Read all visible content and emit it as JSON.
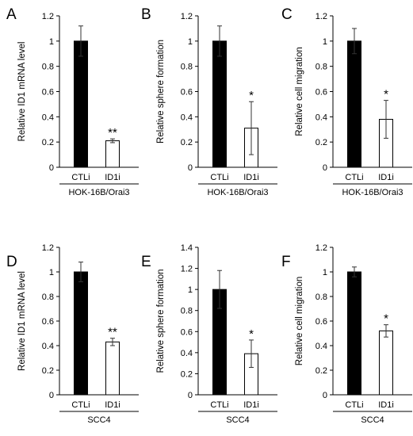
{
  "chart_data": [
    {
      "panel": "A",
      "type": "bar",
      "ylabel": "Relative ID1 mRNA level",
      "categories": [
        "CTLi",
        "ID1i"
      ],
      "values": [
        1.0,
        0.21
      ],
      "errors": [
        0.12,
        0.015
      ],
      "fills": [
        "#000000",
        "#ffffff"
      ],
      "significance": [
        "",
        "**"
      ],
      "group": "HOK-16B/Orai3",
      "ylim": [
        0,
        1.2
      ],
      "yticks": [
        "0",
        "0.2",
        "0.4",
        "0.6",
        "0.8",
        "1",
        "1.2"
      ]
    },
    {
      "panel": "B",
      "type": "bar",
      "ylabel": "Relative sphere formation",
      "categories": [
        "CTLi",
        "ID1i"
      ],
      "values": [
        1.0,
        0.31
      ],
      "errors": [
        0.12,
        0.21
      ],
      "fills": [
        "#000000",
        "#ffffff"
      ],
      "significance": [
        "",
        "*"
      ],
      "group": "HOK-16B/Orai3",
      "ylim": [
        0,
        1.2
      ],
      "yticks": [
        "0",
        "0.2",
        "0.4",
        "0.6",
        "0.8",
        "1",
        "1.2"
      ]
    },
    {
      "panel": "C",
      "type": "bar",
      "ylabel": "Relative cell migration",
      "categories": [
        "CTLi",
        "ID1i"
      ],
      "values": [
        1.0,
        0.38
      ],
      "errors": [
        0.1,
        0.15
      ],
      "fills": [
        "#000000",
        "#ffffff"
      ],
      "significance": [
        "",
        "*"
      ],
      "group": "HOK-16B/Orai3",
      "ylim": [
        0,
        1.2
      ],
      "yticks": [
        "0",
        "0.2",
        "0.4",
        "0.6",
        "0.8",
        "1",
        "1.2"
      ]
    },
    {
      "panel": "D",
      "type": "bar",
      "ylabel": "Relative ID1 mRNA level",
      "categories": [
        "CTLi",
        "ID1i"
      ],
      "values": [
        1.0,
        0.43
      ],
      "errors": [
        0.08,
        0.03
      ],
      "fills": [
        "#000000",
        "#ffffff"
      ],
      "significance": [
        "",
        "**"
      ],
      "group": "SCC4",
      "ylim": [
        0,
        1.2
      ],
      "yticks": [
        "0",
        "0.2",
        "0.4",
        "0.6",
        "0.8",
        "1",
        "1.2"
      ]
    },
    {
      "panel": "E",
      "type": "bar",
      "ylabel": "Relative sphere formation",
      "categories": [
        "CTLi",
        "ID1i"
      ],
      "values": [
        1.0,
        0.39
      ],
      "errors": [
        0.18,
        0.13
      ],
      "fills": [
        "#000000",
        "#ffffff"
      ],
      "significance": [
        "",
        "*"
      ],
      "group": "SCC4",
      "ylim": [
        0,
        1.4
      ],
      "yticks": [
        "0",
        "0.2",
        "0.4",
        "0.6",
        "0.8",
        "1",
        "1.2",
        "1.4"
      ]
    },
    {
      "panel": "F",
      "type": "bar",
      "ylabel": "Relative cell migration",
      "categories": [
        "CTLi",
        "ID1i"
      ],
      "values": [
        1.0,
        0.52
      ],
      "errors": [
        0.04,
        0.05
      ],
      "fills": [
        "#000000",
        "#ffffff"
      ],
      "significance": [
        "",
        "*"
      ],
      "group": "SCC4",
      "ylim": [
        0,
        1.2
      ],
      "yticks": [
        "0",
        "0.2",
        "0.4",
        "0.6",
        "0.8",
        "1",
        "1.2"
      ]
    }
  ]
}
